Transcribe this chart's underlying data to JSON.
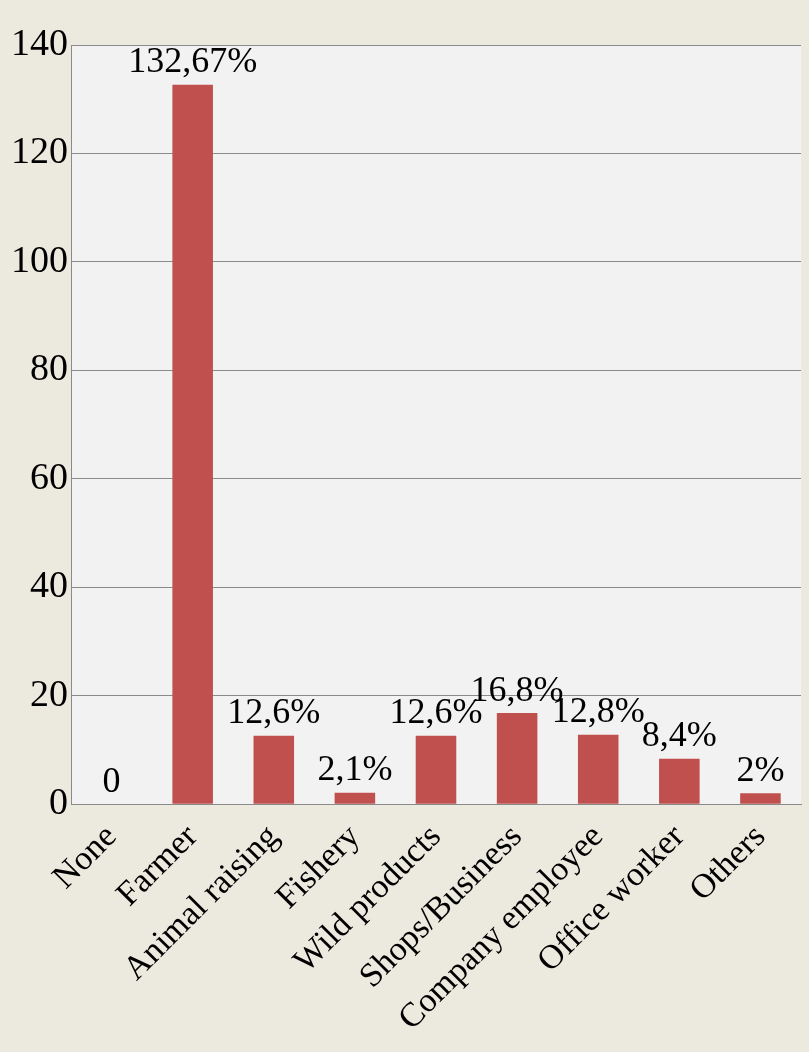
{
  "chart_data": {
    "type": "bar",
    "categories": [
      "None",
      "Farmer",
      "Animal raising",
      "Fishery",
      "Wild products",
      "Shops/Business",
      "Company employee",
      "Office worker",
      "Others"
    ],
    "values": [
      0,
      132.67,
      12.6,
      2.1,
      12.6,
      16.8,
      12.8,
      8.4,
      2
    ],
    "value_labels": [
      "0",
      "132,67%",
      "12,6%",
      "2,1%",
      "12,6%",
      "16,8%",
      "12,8%",
      "8,4%",
      "2%"
    ],
    "color": "#c0504d",
    "ylim": [
      0,
      140
    ],
    "yticks": [
      0,
      20,
      40,
      60,
      80,
      100,
      120,
      140
    ],
    "grid": "y",
    "legend": false
  }
}
